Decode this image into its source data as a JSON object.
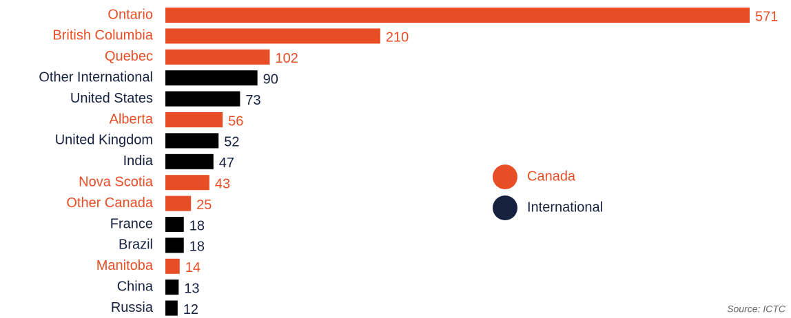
{
  "chart_data": {
    "type": "bar",
    "orientation": "horizontal",
    "categories": [
      "Ontario",
      "British Columbia",
      "Quebec",
      "Other International",
      "United States",
      "Alberta",
      "United Kingdom",
      "India",
      "Nova Scotia",
      "Other Canada",
      "France",
      "Brazil",
      "Manitoba",
      "China",
      "Russia"
    ],
    "series": [
      {
        "name": "Canada",
        "color": "#e84e26",
        "bar_color": "#e84e26",
        "values": [
          571,
          210,
          102,
          null,
          null,
          56,
          null,
          null,
          43,
          25,
          null,
          null,
          14,
          null,
          null
        ]
      },
      {
        "name": "International",
        "color": "#15213f",
        "bar_color": "#000000",
        "values": [
          null,
          null,
          null,
          90,
          73,
          null,
          52,
          47,
          null,
          null,
          18,
          18,
          null,
          13,
          12
        ]
      }
    ],
    "legend": "right",
    "source": "Source: ICTC"
  }
}
